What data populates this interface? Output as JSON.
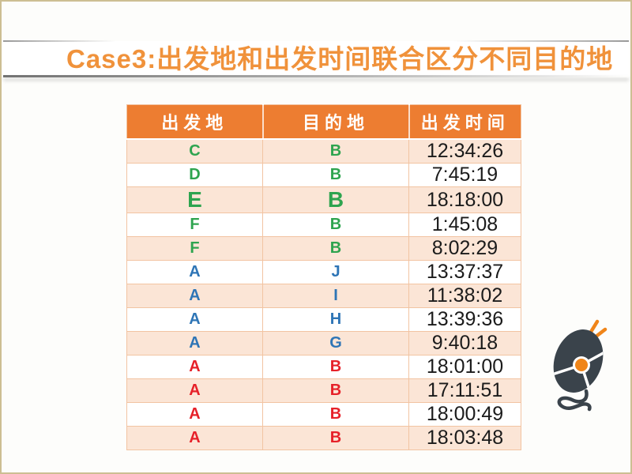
{
  "slide": {
    "title": "Case3:出发地和出发时间联合区分不同目的地"
  },
  "table": {
    "headers": [
      "出发地",
      "目的地",
      "出发时间"
    ],
    "rows": [
      {
        "from": "C",
        "to": "B",
        "time": "12:34:26",
        "color": "green",
        "large": false
      },
      {
        "from": "D",
        "to": "B",
        "time": "7:45:19",
        "color": "green",
        "large": false
      },
      {
        "from": "E",
        "to": "B",
        "time": "18:18:00",
        "color": "green",
        "large": true
      },
      {
        "from": "F",
        "to": "B",
        "time": "1:45:08",
        "color": "green",
        "large": false
      },
      {
        "from": "F",
        "to": "B",
        "time": "8:02:29",
        "color": "green",
        "large": false
      },
      {
        "from": "A",
        "to": "J",
        "time": "13:37:37",
        "color": "blue",
        "large": false
      },
      {
        "from": "A",
        "to": "I",
        "time": "11:38:02",
        "color": "blue",
        "large": false
      },
      {
        "from": "A",
        "to": "H",
        "time": "13:39:36",
        "color": "blue",
        "large": false
      },
      {
        "from": "A",
        "to": "G",
        "time": "9:40:18",
        "color": "blue",
        "large": false
      },
      {
        "from": "A",
        "to": "B",
        "time": "18:01:00",
        "color": "red",
        "large": false
      },
      {
        "from": "A",
        "to": "B",
        "time": "17:11:51",
        "color": "red",
        "large": false
      },
      {
        "from": "A",
        "to": "B",
        "time": "18:00:49",
        "color": "red",
        "large": false
      },
      {
        "from": "A",
        "to": "B",
        "time": "18:03:48",
        "color": "red",
        "large": false
      }
    ]
  },
  "icons": {
    "mouse_icon": "mouse-icon"
  },
  "colors": {
    "title_text": "#F0923B",
    "header_bg": "#ED7D31",
    "row_alt_bg": "#FBE5D6",
    "row_border": "#F2C4A2",
    "green": "#2EA44F",
    "blue": "#2E75B6",
    "red": "#E62129",
    "time_text": "#1B1B1B",
    "page_border": "#CDBE93",
    "mouse_body": "#3A434B",
    "mouse_accent": "#F08519"
  }
}
